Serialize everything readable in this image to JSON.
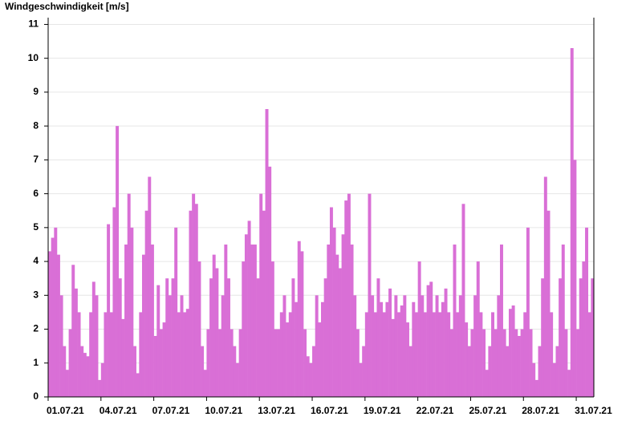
{
  "chart_data": {
    "type": "bar",
    "title": "Windgeschwindigkeit [m/s]",
    "color": "#d96fd6",
    "grid": true,
    "ylim": [
      0,
      11.2
    ],
    "yticks": [
      0,
      1,
      2,
      3,
      4,
      5,
      6,
      7,
      8,
      9,
      10,
      11
    ],
    "categories": [
      "01.07.21",
      null,
      null,
      null,
      null,
      null,
      null,
      null,
      null,
      null,
      null,
      null,
      null,
      null,
      null,
      null,
      null,
      null,
      "04.07.21",
      null,
      null,
      null,
      null,
      null,
      null,
      null,
      null,
      null,
      null,
      null,
      null,
      null,
      null,
      null,
      null,
      null,
      "07.07.21",
      null,
      null,
      null,
      null,
      null,
      null,
      null,
      null,
      null,
      null,
      null,
      null,
      null,
      null,
      null,
      null,
      null,
      "10.07.21",
      null,
      null,
      null,
      null,
      null,
      null,
      null,
      null,
      null,
      null,
      null,
      null,
      null,
      null,
      null,
      null,
      null,
      "13.07.21",
      null,
      null,
      null,
      null,
      null,
      null,
      null,
      null,
      null,
      null,
      null,
      null,
      null,
      null,
      null,
      null,
      null,
      "16.07.21",
      null,
      null,
      null,
      null,
      null,
      null,
      null,
      null,
      null,
      null,
      null,
      null,
      null,
      null,
      null,
      null,
      null,
      "19.07.21",
      null,
      null,
      null,
      null,
      null,
      null,
      null,
      null,
      null,
      null,
      null,
      null,
      null,
      null,
      null,
      null,
      null,
      "22.07.21",
      null,
      null,
      null,
      null,
      null,
      null,
      null,
      null,
      null,
      null,
      null,
      null,
      null,
      null,
      null,
      null,
      null,
      "25.07.21",
      null,
      null,
      null,
      null,
      null,
      null,
      null,
      null,
      null,
      null,
      null,
      null,
      null,
      null,
      null,
      null,
      null,
      "28.07.21",
      null,
      null,
      null,
      null,
      null,
      null,
      null,
      null,
      null,
      null,
      null,
      null,
      null,
      null,
      null,
      null,
      null,
      "31.07.21",
      null,
      null,
      null,
      null,
      null
    ],
    "values": [
      4.3,
      4.7,
      5.0,
      4.2,
      3.0,
      1.5,
      0.8,
      2.0,
      3.9,
      3.2,
      2.5,
      1.5,
      1.3,
      1.2,
      2.5,
      3.4,
      3.0,
      0.5,
      1.0,
      2.5,
      5.1,
      2.5,
      5.6,
      8.0,
      3.5,
      2.3,
      4.5,
      6.0,
      5.0,
      1.5,
      0.7,
      2.5,
      4.2,
      5.5,
      6.5,
      4.5,
      1.8,
      3.3,
      2.0,
      2.2,
      3.5,
      3.0,
      3.5,
      5.0,
      2.5,
      3.0,
      2.5,
      2.6,
      5.5,
      6.0,
      5.7,
      4.0,
      1.5,
      0.8,
      2.0,
      3.5,
      4.2,
      3.8,
      2.0,
      3.0,
      4.5,
      3.5,
      2.0,
      1.5,
      1.0,
      2.0,
      4.0,
      4.8,
      5.2,
      4.5,
      4.5,
      3.5,
      6.0,
      5.5,
      8.5,
      6.8,
      4.0,
      2.0,
      2.0,
      2.5,
      3.0,
      2.2,
      2.5,
      3.5,
      2.8,
      4.6,
      4.3,
      2.0,
      1.2,
      1.0,
      1.5,
      3.0,
      2.2,
      2.8,
      3.5,
      4.5,
      5.6,
      5.0,
      4.2,
      3.8,
      4.8,
      5.8,
      6.0,
      4.5,
      3.0,
      2.0,
      1.0,
      1.5,
      2.5,
      6.0,
      3.0,
      2.5,
      3.5,
      2.8,
      2.5,
      2.8,
      3.2,
      2.3,
      3.0,
      2.5,
      2.7,
      3.0,
      2.2,
      1.5,
      2.8,
      2.5,
      4.0,
      3.0,
      2.5,
      3.3,
      3.4,
      2.5,
      3.0,
      2.5,
      2.8,
      3.2,
      2.5,
      2.0,
      4.5,
      2.5,
      3.0,
      5.7,
      2.2,
      1.5,
      2.0,
      3.0,
      4.0,
      2.5,
      2.0,
      0.8,
      1.5,
      2.5,
      2.0,
      3.0,
      4.5,
      2.0,
      1.5,
      2.6,
      2.7,
      2.0,
      1.8,
      2.0,
      2.5,
      5.0,
      2.0,
      1.0,
      0.5,
      1.5,
      3.5,
      6.5,
      5.5,
      2.5,
      1.0,
      1.5,
      3.5,
      4.5,
      2.0,
      0.8,
      10.3,
      7.0,
      2.0,
      3.5,
      4.0,
      5.0,
      2.5,
      3.5
    ]
  }
}
